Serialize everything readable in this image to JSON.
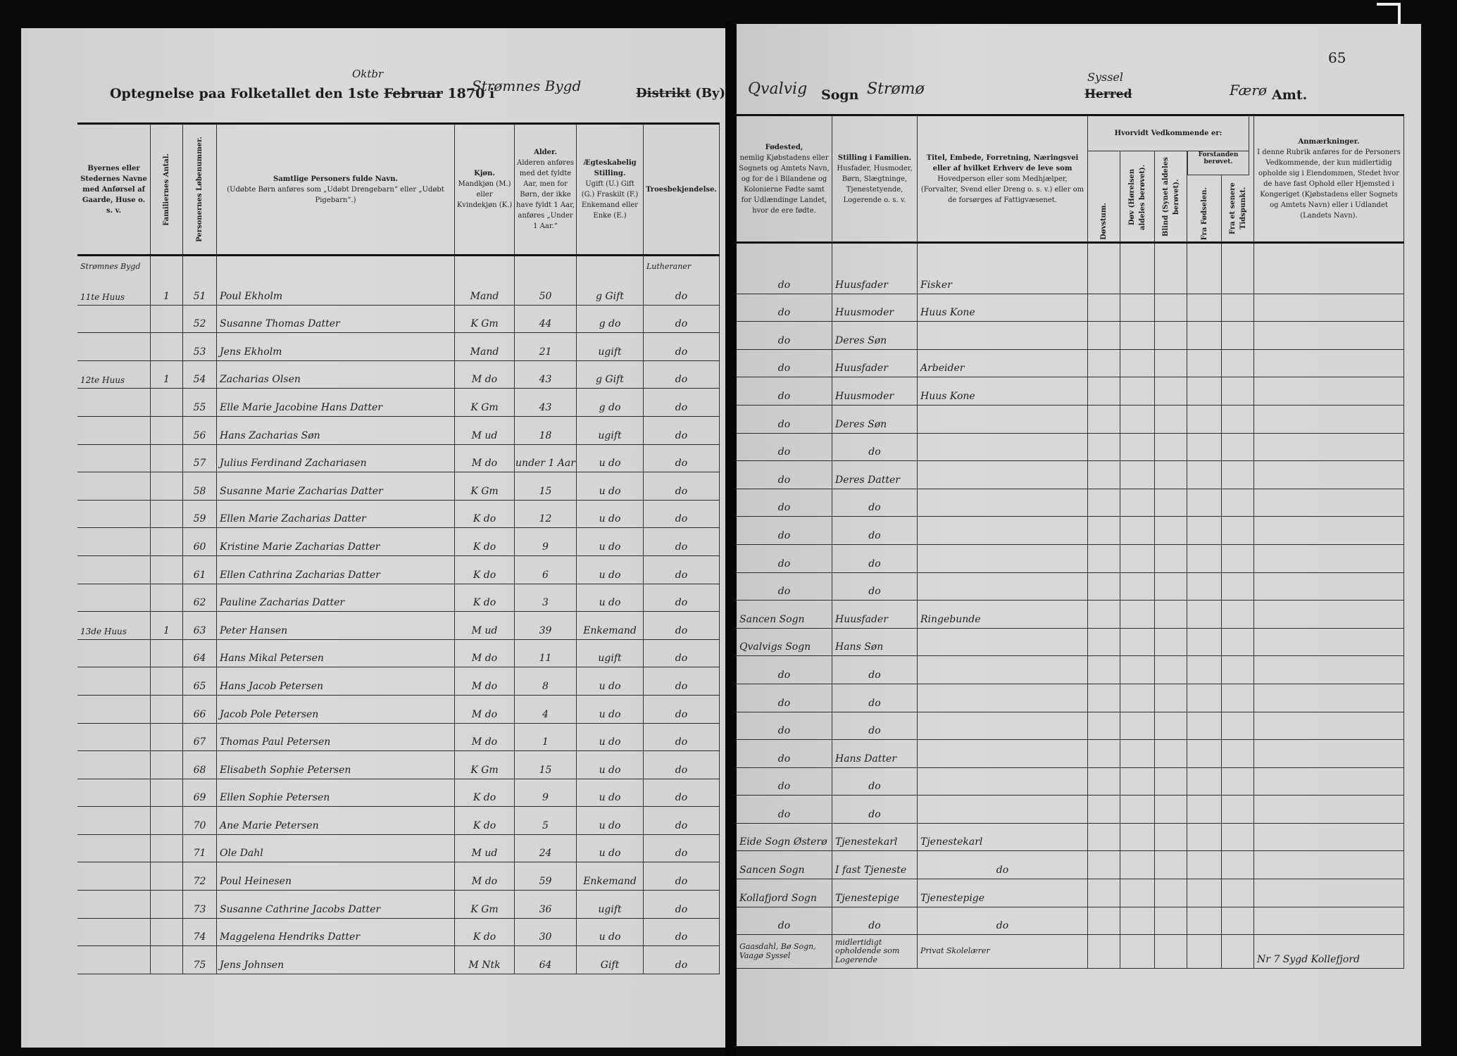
{
  "left_header": {
    "title_prefix": "Optegnelse paa Folketallet den 1ste",
    "month_struck": "Februar",
    "month_handwritten": "Oktbr",
    "year": "1870 i",
    "place_handwritten": "Strømnes Bygd",
    "district_struck": "Distrikt",
    "district_suffix": "(By)"
  },
  "right_header": {
    "parish_handwritten": "Qvalvig",
    "sogn_label": "Sogn",
    "sogn_handwritten": "Strømø",
    "herred_handwritten": "Syssel",
    "herred_struck": "Herred",
    "amt_handwritten": "Færø",
    "amt_label": "Amt.",
    "page_number": "65"
  },
  "left_columns": [
    {
      "title": "Byernes eller Stedernes Navne med Anførsel af Gaarde, Huse o. s. v.",
      "vertical": false
    },
    {
      "title": "Familiernes Antal.",
      "vertical": true
    },
    {
      "title": "Personernes Løbenummer.",
      "vertical": true
    },
    {
      "title": "Samtlige Personers fulde Navn.",
      "note": "(Udøbte Børn anføres som „Udøbt Drengebarn“ eller „Udøbt Pigebarn“.)",
      "vertical": false
    },
    {
      "title": "Kjøn.",
      "note": "Mandkjøn (M.) eller Kvindekjøn (K.)",
      "vertical": false
    },
    {
      "title": "Alder.",
      "note": "Alderen anføres med det fyldte Aar, men for Børn, der ikke have fyldt 1 Aar, anføres „Under 1 Aar.“",
      "vertical": false
    },
    {
      "title": "Ægteskabelig Stilling.",
      "note": "Ugift (U.) Gift (G.) Fraskilt (F.) Enkemand eller Enke (E.)",
      "vertical": false
    },
    {
      "title": "Troesbekjendelse.",
      "vertical": false
    }
  ],
  "right_columns": [
    {
      "title": "Fødested,",
      "note": "nemlig Kjøbstadens eller Sognets og Amtets Navn, og for de i Bilandene og Kolonierne Fødte samt for Udlændinge Landet, hvor de ere fødte."
    },
    {
      "title": "Stilling i Familien.",
      "note": "Husfader, Husmoder, Børn, Slægtninge, Tjenestetyende, Logerende o. s. v."
    },
    {
      "title": "Titel, Embede, Forretning, Næringsvei eller af hvilket Erhverv de leve som",
      "note": "Hovedperson eller som Medhjælper, (Forvalter, Svend eller Dreng o. s. v.) eller om de forsørges af Fattigvæsenet."
    },
    {
      "title": "Døvstum.",
      "vertical": true
    },
    {
      "title": "Døv (Hørelsen aldeles berøvet).",
      "vertical": true
    },
    {
      "title": "Blind (Synet aldeles berøvet).",
      "vertical": true
    },
    {
      "title": "Fra Fødselen.",
      "vertical": true
    },
    {
      "title": "Fra et senere Tidspunkt.",
      "vertical": true
    },
    {
      "title": "Anmærkninger.",
      "note": "I denne Rubrik anføres for de Personers Vedkommende, der kun midlertidig opholde sig i Eiendommen, Stedet hvor de have fast Ophold eller Hjemsted i Kongeriget (Kjøbstadens eller Sognets og Amtets Navn) eller i Udlandet (Landets Navn)."
    }
  ],
  "right_group_header": "Hvorvidt Vedkommende er:",
  "right_subgroup_header": "Forstanden berøvet.",
  "left_annotations": {
    "place_top": "Strømnes Bygd",
    "religion_top": "Lutheraner"
  },
  "left_rows": [
    {
      "place": "11te Huus",
      "families": "1",
      "no": "51",
      "name": "Poul Ekholm",
      "sex": "Mand",
      "age": "50",
      "marital": "g Gift",
      "religion": "do"
    },
    {
      "place": "",
      "families": "",
      "no": "52",
      "name": "Susanne Thomas Datter",
      "sex": "K Gm",
      "age": "44",
      "marital": "g do",
      "religion": "do"
    },
    {
      "place": "",
      "families": "",
      "no": "53",
      "name": "Jens Ekholm",
      "sex": "Mand",
      "age": "21",
      "marital": "ugift",
      "religion": "do"
    },
    {
      "place": "12te Huus",
      "families": "1",
      "no": "54",
      "name": "Zacharias Olsen",
      "sex": "M do",
      "age": "43",
      "marital": "g Gift",
      "religion": "do"
    },
    {
      "place": "",
      "families": "",
      "no": "55",
      "name": "Elle Marie Jacobine Hans Datter",
      "sex": "K Gm",
      "age": "43",
      "marital": "g do",
      "religion": "do"
    },
    {
      "place": "",
      "families": "",
      "no": "56",
      "name": "Hans Zacharias Søn",
      "sex": "M ud",
      "age": "18",
      "marital": "ugift",
      "religion": "do"
    },
    {
      "place": "",
      "families": "",
      "no": "57",
      "name": "Julius Ferdinand Zachariasen",
      "sex": "M do",
      "age": "under 1 Aar",
      "marital": "u do",
      "religion": "do"
    },
    {
      "place": "",
      "families": "",
      "no": "58",
      "name": "Susanne Marie Zacharias Datter",
      "sex": "K Gm",
      "age": "15",
      "marital": "u do",
      "religion": "do"
    },
    {
      "place": "",
      "families": "",
      "no": "59",
      "name": "Ellen Marie Zacharias Datter",
      "sex": "K do",
      "age": "12",
      "marital": "u do",
      "religion": "do"
    },
    {
      "place": "",
      "families": "",
      "no": "60",
      "name": "Kristine Marie Zacharias Datter",
      "sex": "K do",
      "age": "9",
      "marital": "u do",
      "religion": "do"
    },
    {
      "place": "",
      "families": "",
      "no": "61",
      "name": "Ellen Cathrina Zacharias Datter",
      "sex": "K do",
      "age": "6",
      "marital": "u do",
      "religion": "do"
    },
    {
      "place": "",
      "families": "",
      "no": "62",
      "name": "Pauline Zacharias Datter",
      "sex": "K do",
      "age": "3",
      "marital": "u do",
      "religion": "do"
    },
    {
      "place": "13de Huus",
      "families": "1",
      "no": "63",
      "name": "Peter Hansen",
      "sex": "M ud",
      "age": "39",
      "marital": "Enkemand",
      "religion": "do"
    },
    {
      "place": "",
      "families": "",
      "no": "64",
      "name": "Hans Mikal Petersen",
      "sex": "M do",
      "age": "11",
      "marital": "ugift",
      "religion": "do"
    },
    {
      "place": "",
      "families": "",
      "no": "65",
      "name": "Hans Jacob Petersen",
      "sex": "M do",
      "age": "8",
      "marital": "u do",
      "religion": "do"
    },
    {
      "place": "",
      "families": "",
      "no": "66",
      "name": "Jacob Pole Petersen",
      "sex": "M do",
      "age": "4",
      "marital": "u do",
      "religion": "do"
    },
    {
      "place": "",
      "families": "",
      "no": "67",
      "name": "Thomas Paul Petersen",
      "sex": "M do",
      "age": "1",
      "marital": "u do",
      "religion": "do"
    },
    {
      "place": "",
      "families": "",
      "no": "68",
      "name": "Elisabeth Sophie Petersen",
      "sex": "K Gm",
      "age": "15",
      "marital": "u do",
      "religion": "do"
    },
    {
      "place": "",
      "families": "",
      "no": "69",
      "name": "Ellen Sophie Petersen",
      "sex": "K do",
      "age": "9",
      "marital": "u do",
      "religion": "do"
    },
    {
      "place": "",
      "families": "",
      "no": "70",
      "name": "Ane Marie Petersen",
      "sex": "K do",
      "age": "5",
      "marital": "u do",
      "religion": "do"
    },
    {
      "place": "",
      "families": "",
      "no": "71",
      "name": "Ole Dahl",
      "sex": "M ud",
      "age": "24",
      "marital": "u do",
      "religion": "do"
    },
    {
      "place": "",
      "families": "",
      "no": "72",
      "name": "Poul Heinesen",
      "sex": "M do",
      "age": "59",
      "marital": "Enkemand",
      "religion": "do"
    },
    {
      "place": "",
      "families": "",
      "no": "73",
      "name": "Susanne Cathrine Jacobs Datter",
      "sex": "K Gm",
      "age": "36",
      "marital": "ugift",
      "religion": "do"
    },
    {
      "place": "",
      "families": "",
      "no": "74",
      "name": "Maggelena Hendriks Datter",
      "sex": "K do",
      "age": "30",
      "marital": "u do",
      "religion": "do"
    },
    {
      "place": "",
      "families": "",
      "no": "75",
      "name": "Jens Johnsen",
      "sex": "M Ntk",
      "age": "64",
      "marital": "Gift",
      "religion": "do"
    }
  ],
  "right_rows": [
    {
      "birthplace": "do",
      "position": "Huusfader",
      "occupation": "Fisker",
      "remarks": ""
    },
    {
      "birthplace": "do",
      "position": "Huusmoder",
      "occupation": "Huus Kone",
      "remarks": ""
    },
    {
      "birthplace": "do",
      "position": "Deres Søn",
      "occupation": "",
      "remarks": ""
    },
    {
      "birthplace": "do",
      "position": "Huusfader",
      "occupation": "Arbeider",
      "remarks": ""
    },
    {
      "birthplace": "do",
      "position": "Huusmoder",
      "occupation": "Huus Kone",
      "remarks": ""
    },
    {
      "birthplace": "do",
      "position": "Deres Søn",
      "occupation": "",
      "remarks": ""
    },
    {
      "birthplace": "do",
      "position": "do",
      "occupation": "",
      "remarks": ""
    },
    {
      "birthplace": "do",
      "position": "Deres Datter",
      "occupation": "",
      "remarks": ""
    },
    {
      "birthplace": "do",
      "position": "do",
      "occupation": "",
      "remarks": ""
    },
    {
      "birthplace": "do",
      "position": "do",
      "occupation": "",
      "remarks": ""
    },
    {
      "birthplace": "do",
      "position": "do",
      "occupation": "",
      "remarks": ""
    },
    {
      "birthplace": "do",
      "position": "do",
      "occupation": "",
      "remarks": ""
    },
    {
      "birthplace": "Sancen Sogn",
      "position": "Huusfader",
      "occupation": "Ringebunde",
      "remarks": ""
    },
    {
      "birthplace": "Qvalvigs Sogn",
      "position": "Hans Søn",
      "occupation": "",
      "remarks": ""
    },
    {
      "birthplace": "do",
      "position": "do",
      "occupation": "",
      "remarks": ""
    },
    {
      "birthplace": "do",
      "position": "do",
      "occupation": "",
      "remarks": ""
    },
    {
      "birthplace": "do",
      "position": "do",
      "occupation": "",
      "remarks": ""
    },
    {
      "birthplace": "do",
      "position": "Hans Datter",
      "occupation": "",
      "remarks": ""
    },
    {
      "birthplace": "do",
      "position": "do",
      "occupation": "",
      "remarks": ""
    },
    {
      "birthplace": "do",
      "position": "do",
      "occupation": "",
      "remarks": ""
    },
    {
      "birthplace": "Eide Sogn Østerø",
      "position": "Tjenestekarl",
      "occupation": "Tjenestekarl",
      "remarks": ""
    },
    {
      "birthplace": "Sancen Sogn",
      "position": "I fast Tjeneste",
      "occupation": "do",
      "remarks": ""
    },
    {
      "birthplace": "Kollafjord Sogn",
      "position": "Tjenestepige",
      "occupation": "Tjenestepige",
      "remarks": ""
    },
    {
      "birthplace": "do",
      "position": "do",
      "occupation": "do",
      "remarks": ""
    },
    {
      "birthplace": "Gaasdahl, Bø Sogn, Vaagø Syssel",
      "position": "midlertidigt opholdende som Logerende",
      "occupation": "Privat Skolelærer",
      "remarks": "Nr 7 Sygd Kollefjord"
    }
  ],
  "colors": {
    "paper": "#d6d6d4",
    "ink": "#1c1c1c",
    "background": "#0a0a0a"
  }
}
